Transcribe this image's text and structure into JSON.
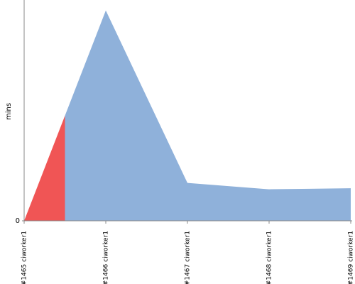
{
  "chart_data": {
    "type": "area",
    "y_label": "mins",
    "categories": [
      "#1465 ciworker1",
      "#1466 ciworker1",
      "#1467 ciworker1",
      "#1468 ciworker1",
      "#1469 ciworker1"
    ],
    "values": [
      0,
      10,
      1.8,
      1.5,
      1.55
    ],
    "colors": [
      "#f05555",
      "#8fb1da",
      "#8fb1da",
      "#8fb1da",
      "#8fb1da"
    ],
    "ylim": [
      0,
      10.5
    ],
    "yticks": [
      0
    ]
  }
}
